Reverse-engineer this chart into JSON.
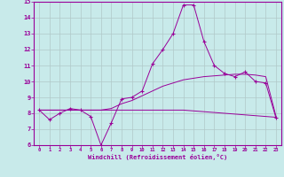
{
  "xlabel": "Windchill (Refroidissement éolien,°C)",
  "background_color": "#c8eaea",
  "line_color": "#990099",
  "grid_color": "#b0c8c8",
  "xlim": [
    -0.5,
    23.5
  ],
  "ylim": [
    6,
    15
  ],
  "yticks": [
    6,
    7,
    8,
    9,
    10,
    11,
    12,
    13,
    14,
    15
  ],
  "xticks": [
    0,
    1,
    2,
    3,
    4,
    5,
    6,
    7,
    8,
    9,
    10,
    11,
    12,
    13,
    14,
    15,
    16,
    17,
    18,
    19,
    20,
    21,
    22,
    23
  ],
  "x": [
    0,
    1,
    2,
    3,
    4,
    5,
    6,
    7,
    8,
    9,
    10,
    11,
    12,
    13,
    14,
    15,
    16,
    17,
    18,
    19,
    20,
    21,
    22,
    23
  ],
  "y_main": [
    8.2,
    7.6,
    8.0,
    8.3,
    8.2,
    7.8,
    6.0,
    7.4,
    8.9,
    9.0,
    9.4,
    11.1,
    12.0,
    13.0,
    14.8,
    14.8,
    12.5,
    11.0,
    10.5,
    10.3,
    10.6,
    10.0,
    9.9,
    7.7
  ],
  "y_upper": [
    8.2,
    8.2,
    8.2,
    8.2,
    8.2,
    8.2,
    8.2,
    8.3,
    8.6,
    8.8,
    9.1,
    9.4,
    9.7,
    9.9,
    10.1,
    10.2,
    10.3,
    10.35,
    10.4,
    10.45,
    10.45,
    10.4,
    10.3,
    7.8
  ],
  "y_lower": [
    8.2,
    8.2,
    8.2,
    8.2,
    8.2,
    8.2,
    8.2,
    8.2,
    8.2,
    8.2,
    8.2,
    8.2,
    8.2,
    8.2,
    8.2,
    8.15,
    8.1,
    8.05,
    8.0,
    7.95,
    7.9,
    7.85,
    7.8,
    7.75
  ]
}
